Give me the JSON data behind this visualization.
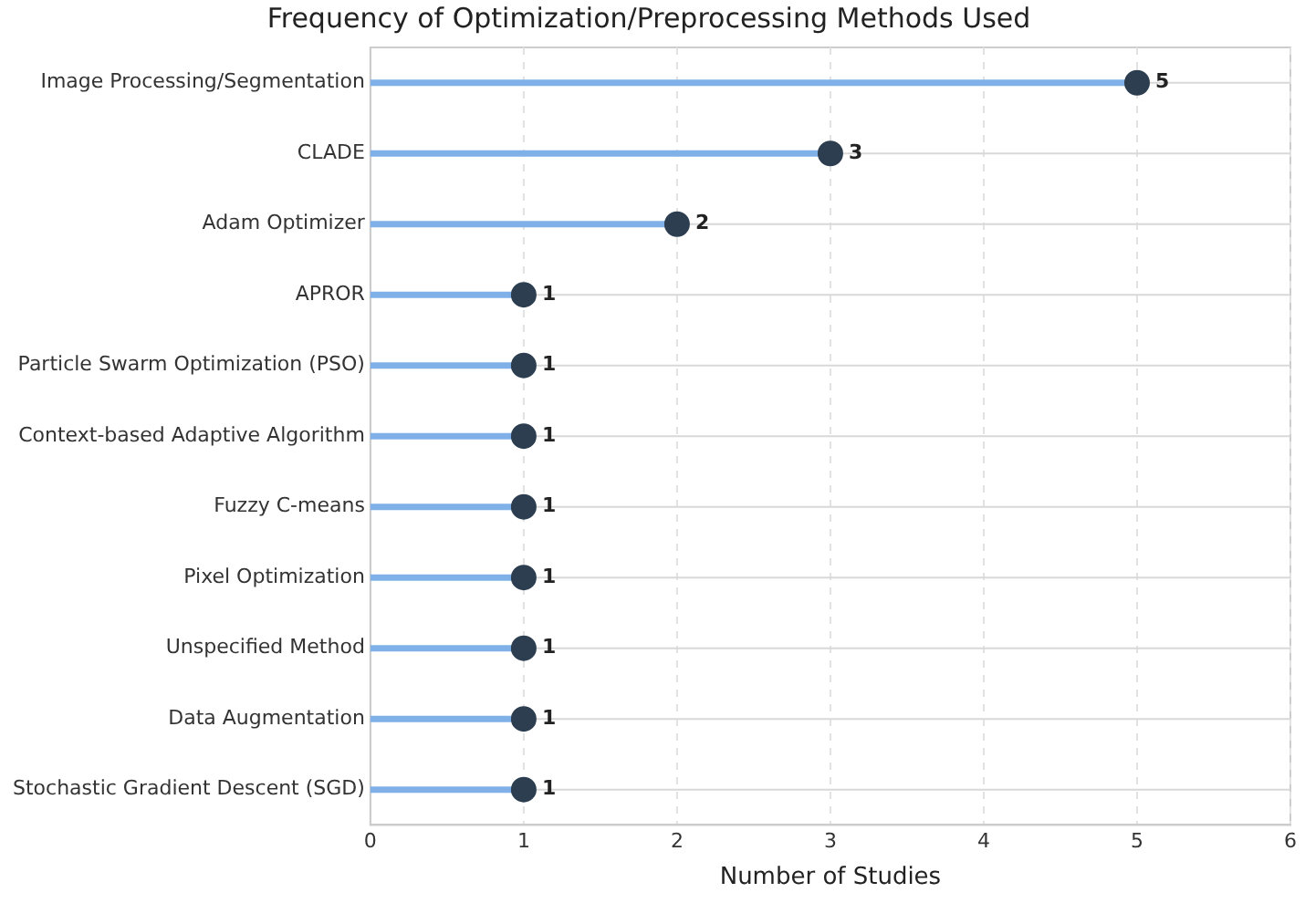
{
  "chart_data": {
    "type": "lollipop",
    "orientation": "horizontal",
    "title": "Frequency of Optimization/Preprocessing Methods Used",
    "xlabel": "Number of Studies",
    "categories": [
      "Image Processing/Segmentation",
      "CLADE",
      "Adam Optimizer",
      "APROR",
      "Particle Swarm Optimization (PSO)",
      "Context-based Adaptive Algorithm",
      "Fuzzy C-means",
      "Pixel Optimization",
      "Unspecified Method",
      "Data Augmentation",
      "Stochastic Gradient Descent (SGD)"
    ],
    "values": [
      5,
      3,
      2,
      1,
      1,
      1,
      1,
      1,
      1,
      1,
      1
    ],
    "color": "#2c3e50",
    "xlim": [
      0,
      6
    ],
    "xticks": [
      0,
      1,
      2,
      3,
      4,
      5,
      6
    ],
    "grid": true,
    "legend": false,
    "marker": "circle",
    "data_labels": true
  }
}
